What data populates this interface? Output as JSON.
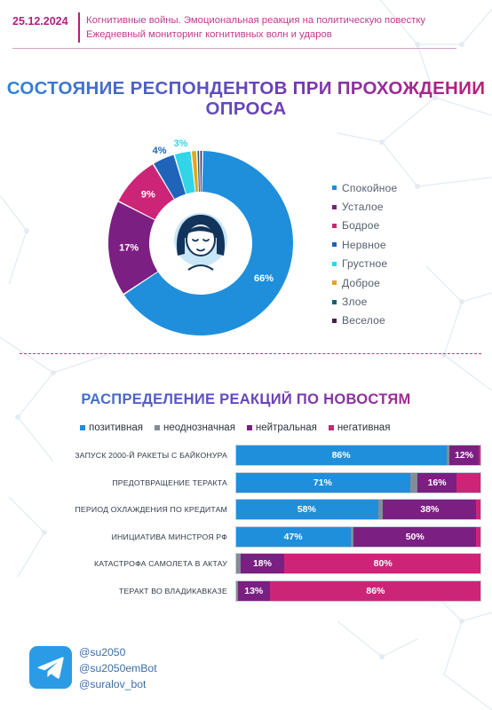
{
  "header": {
    "date": "25.12.2024",
    "line1": "Когнитивные войны. Эмоциональная реакция на политическую повестку",
    "line2": "Ежедневный мониторинг когнитивных волн и ударов"
  },
  "colors": {
    "calm": "#1f8fdc",
    "tired": "#7b1f82",
    "cheerful": "#cc2577",
    "nervous": "#1f64b8",
    "sad": "#33d4e8",
    "kind": "#e6a51e",
    "angry": "#1f5f73",
    "merry": "#4a1e4e",
    "positive": "#1f8fdc",
    "ambiguous": "#858c95",
    "neutral": "#7b1f82",
    "negative": "#cc2577",
    "brand": "#b31f7e",
    "telegram": "#2b9be6"
  },
  "chart_data": [
    {
      "type": "pie",
      "title": "СОСТОЯНИЕ РЕСПОНДЕНТОВ ПРИ ПРОХОЖДЕНИИ ОПРОСА",
      "donut": true,
      "center_icon": "calm-face-icon",
      "legend_position": "right",
      "categories": [
        "Спокойное",
        "Усталое",
        "Бодрое",
        "Нервное",
        "Грустное",
        "Доброе",
        "Злое",
        "Веселое"
      ],
      "values": [
        66,
        17,
        9,
        4,
        3,
        1,
        0.5,
        0.5
      ],
      "labels": [
        "66%",
        "17%",
        "9%",
        "4%",
        "3%",
        "",
        "",
        ""
      ],
      "colors": [
        "#1f8fdc",
        "#7b1f82",
        "#cc2577",
        "#1f64b8",
        "#33d4e8",
        "#e6a51e",
        "#1f5f73",
        "#4a1e4e"
      ]
    },
    {
      "type": "bar",
      "orientation": "horizontal",
      "stacked": true,
      "title": "РАСПРЕДЕЛЕНИЕ РЕАКЦИЙ ПО НОВОСТЯМ",
      "legend_position": "top",
      "xlim": [
        0,
        100
      ],
      "categories": [
        "ЗАПУСК 2000-Й РАКЕТЫ С БАЙКОНУРА",
        "ПРЕДОТВРАЩЕНИЕ ТЕРАКТА",
        "ПЕРИОД ОХЛАЖДЕНИЯ ПО КРЕДИТАМ",
        "ИНИЦИАТИВА МИНСТРОЯ РФ",
        "КАТАСТРОФА САМОЛЕТА В АКТАУ",
        "ТЕРАКТ ВО ВЛАДИКАВКАЗЕ"
      ],
      "series": [
        {
          "name": "позитивная",
          "values": [
            86,
            71,
            58,
            47,
            0,
            0
          ],
          "labels": [
            "86%",
            "71%",
            "58%",
            "47%",
            "",
            ""
          ]
        },
        {
          "name": "неоднозначная",
          "values": [
            1,
            3,
            2,
            1,
            2,
            1
          ],
          "labels": [
            "",
            "",
            "",
            "",
            "",
            ""
          ]
        },
        {
          "name": "нейтральная",
          "values": [
            12,
            16,
            38,
            50,
            18,
            13
          ],
          "labels": [
            "12%",
            "16%",
            "38%",
            "50%",
            "18%",
            "13%"
          ]
        },
        {
          "name": "негативная",
          "values": [
            1,
            10,
            2,
            2,
            80,
            86
          ],
          "labels": [
            "",
            "",
            "",
            "",
            "80%",
            "86%"
          ]
        }
      ]
    }
  ],
  "contacts": {
    "icon": "telegram-icon",
    "handles": [
      "@su2050",
      "@su2050emBot",
      "@suralov_bot"
    ]
  }
}
